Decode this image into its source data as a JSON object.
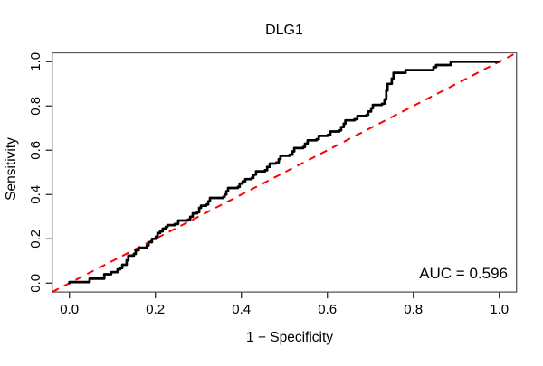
{
  "chart_data": {
    "type": "line",
    "subtype": "roc-curve",
    "title": "DLG1",
    "xlabel": "1 − Specificity",
    "ylabel": "Sensitivity",
    "xlim": [
      0,
      1
    ],
    "ylim": [
      0,
      1
    ],
    "grid": false,
    "legend": "none",
    "annotation": {
      "auc_label": "AUC = 0.596",
      "auc_value": 0.596,
      "position": "bottom-right"
    },
    "colors": {
      "roc_curve": "#000000",
      "chance_line": "#ff0000",
      "frame": "#5a5a5a",
      "background": "#ffffff"
    },
    "x_ticks": [
      0,
      0.2,
      0.4,
      0.6,
      0.8,
      1
    ],
    "x_tick_labels": [
      "0.0",
      "0.2",
      "0.4",
      "0.6",
      "0.8",
      "1.0"
    ],
    "y_ticks": [
      0,
      0.2,
      0.4,
      0.6,
      0.8,
      1
    ],
    "y_tick_labels": [
      "0.0",
      "0.2",
      "0.4",
      "0.6",
      "0.8",
      "1.0"
    ],
    "series": [
      {
        "name": "ROC curve",
        "color": "#000000",
        "style": "solid",
        "line_width": 2.7,
        "step": true,
        "points": [
          [
            0,
            0
          ],
          [
            0,
            0.005
          ],
          [
            0.045,
            0.005
          ],
          [
            0.047,
            0.02
          ],
          [
            0.076,
            0.02
          ],
          [
            0.081,
            0.04
          ],
          [
            0.091,
            0.04
          ],
          [
            0.097,
            0.05
          ],
          [
            0.108,
            0.05
          ],
          [
            0.112,
            0.062
          ],
          [
            0.118,
            0.068
          ],
          [
            0.123,
            0.083
          ],
          [
            0.133,
            0.103
          ],
          [
            0.137,
            0.124
          ],
          [
            0.15,
            0.132
          ],
          [
            0.154,
            0.148
          ],
          [
            0.161,
            0.16
          ],
          [
            0.18,
            0.17
          ],
          [
            0.184,
            0.185
          ],
          [
            0.192,
            0.2
          ],
          [
            0.201,
            0.21
          ],
          [
            0.205,
            0.226
          ],
          [
            0.211,
            0.234
          ],
          [
            0.217,
            0.246
          ],
          [
            0.224,
            0.254
          ],
          [
            0.228,
            0.262
          ],
          [
            0.245,
            0.267
          ],
          [
            0.253,
            0.283
          ],
          [
            0.276,
            0.287
          ],
          [
            0.281,
            0.3
          ],
          [
            0.287,
            0.315
          ],
          [
            0.297,
            0.32
          ],
          [
            0.302,
            0.34
          ],
          [
            0.306,
            0.35
          ],
          [
            0.318,
            0.355
          ],
          [
            0.323,
            0.37
          ],
          [
            0.327,
            0.385
          ],
          [
            0.358,
            0.39
          ],
          [
            0.361,
            0.4
          ],
          [
            0.365,
            0.415
          ],
          [
            0.369,
            0.43
          ],
          [
            0.392,
            0.435
          ],
          [
            0.396,
            0.45
          ],
          [
            0.403,
            0.46
          ],
          [
            0.409,
            0.47
          ],
          [
            0.424,
            0.475
          ],
          [
            0.428,
            0.49
          ],
          [
            0.434,
            0.505
          ],
          [
            0.455,
            0.51
          ],
          [
            0.46,
            0.525
          ],
          [
            0.466,
            0.54
          ],
          [
            0.481,
            0.545
          ],
          [
            0.487,
            0.56
          ],
          [
            0.491,
            0.575
          ],
          [
            0.512,
            0.58
          ],
          [
            0.519,
            0.595
          ],
          [
            0.523,
            0.61
          ],
          [
            0.544,
            0.615
          ],
          [
            0.548,
            0.63
          ],
          [
            0.554,
            0.645
          ],
          [
            0.575,
            0.65
          ],
          [
            0.58,
            0.665
          ],
          [
            0.601,
            0.67
          ],
          [
            0.607,
            0.685
          ],
          [
            0.628,
            0.69
          ],
          [
            0.632,
            0.705
          ],
          [
            0.638,
            0.72
          ],
          [
            0.642,
            0.735
          ],
          [
            0.663,
            0.74
          ],
          [
            0.67,
            0.755
          ],
          [
            0.691,
            0.76
          ],
          [
            0.695,
            0.775
          ],
          [
            0.702,
            0.79
          ],
          [
            0.706,
            0.805
          ],
          [
            0.727,
            0.81
          ],
          [
            0.733,
            0.83
          ],
          [
            0.737,
            0.87
          ],
          [
            0.74,
            0.9
          ],
          [
            0.75,
            0.924
          ],
          [
            0.754,
            0.95
          ],
          [
            0.777,
            0.95
          ],
          [
            0.782,
            0.962
          ],
          [
            0.843,
            0.962
          ],
          [
            0.847,
            0.975
          ],
          [
            0.853,
            0.985
          ],
          [
            0.885,
            0.985
          ],
          [
            0.887,
            1
          ],
          [
            1,
            1
          ]
        ]
      },
      {
        "name": "chance line",
        "color": "#ff0000",
        "style": "dashed",
        "line_width": 2,
        "spans_full_box": true,
        "points": [
          [
            0,
            0
          ],
          [
            1,
            1
          ]
        ]
      }
    ]
  }
}
